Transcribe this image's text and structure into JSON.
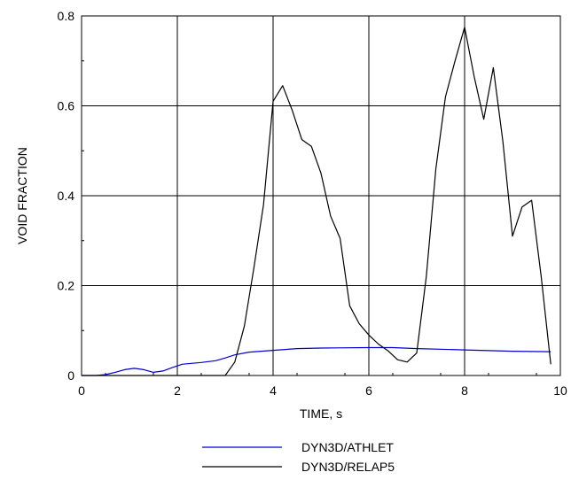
{
  "chart_data": {
    "type": "line",
    "xlabel": "TIME, s",
    "ylabel": "VOID FRACTION",
    "xlim": [
      0,
      10
    ],
    "ylim": [
      0,
      0.8
    ],
    "x_ticks": [
      0,
      2,
      4,
      6,
      8,
      10
    ],
    "y_ticks": [
      0,
      0.2,
      0.4,
      0.6,
      0.8
    ],
    "x_tick_labels": [
      "0",
      "2",
      "4",
      "6",
      "8",
      "10"
    ],
    "y_tick_labels": [
      "0",
      "0.2",
      "0.4",
      "0.6",
      "0.8"
    ],
    "grid": true,
    "legend_position": "bottom",
    "series": [
      {
        "name": "DYN3D/ATHLET",
        "color": "#0000cc",
        "x": [
          0,
          0.3,
          0.5,
          0.7,
          0.9,
          1.1,
          1.3,
          1.5,
          1.7,
          1.9,
          2.1,
          2.5,
          2.8,
          3.0,
          3.2,
          3.5,
          4.0,
          4.5,
          5.0,
          6.0,
          6.5,
          7.0,
          8.0,
          9.0,
          9.8
        ],
        "y": [
          0,
          0,
          0.002,
          0.007,
          0.013,
          0.016,
          0.013,
          0.007,
          0.01,
          0.018,
          0.025,
          0.029,
          0.033,
          0.039,
          0.046,
          0.052,
          0.056,
          0.06,
          0.061,
          0.062,
          0.062,
          0.06,
          0.057,
          0.054,
          0.053
        ]
      },
      {
        "name": "DYN3D/RELAP5",
        "color": "#000000",
        "x": [
          0,
          3.0,
          3.2,
          3.4,
          3.6,
          3.8,
          4.0,
          4.2,
          4.4,
          4.6,
          4.8,
          5.0,
          5.2,
          5.4,
          5.6,
          5.8,
          6.0,
          6.2,
          6.4,
          6.6,
          6.8,
          7.0,
          7.2,
          7.4,
          7.6,
          7.8,
          8.0,
          8.2,
          8.4,
          8.6,
          8.8,
          9.0,
          9.2,
          9.4,
          9.6,
          9.8
        ],
        "y": [
          0,
          0,
          0.03,
          0.11,
          0.24,
          0.38,
          0.61,
          0.645,
          0.59,
          0.525,
          0.51,
          0.45,
          0.355,
          0.305,
          0.155,
          0.115,
          0.09,
          0.07,
          0.055,
          0.035,
          0.03,
          0.05,
          0.22,
          0.46,
          0.62,
          0.7,
          0.775,
          0.665,
          0.57,
          0.685,
          0.52,
          0.31,
          0.375,
          0.39,
          0.22,
          0.025
        ]
      }
    ]
  }
}
